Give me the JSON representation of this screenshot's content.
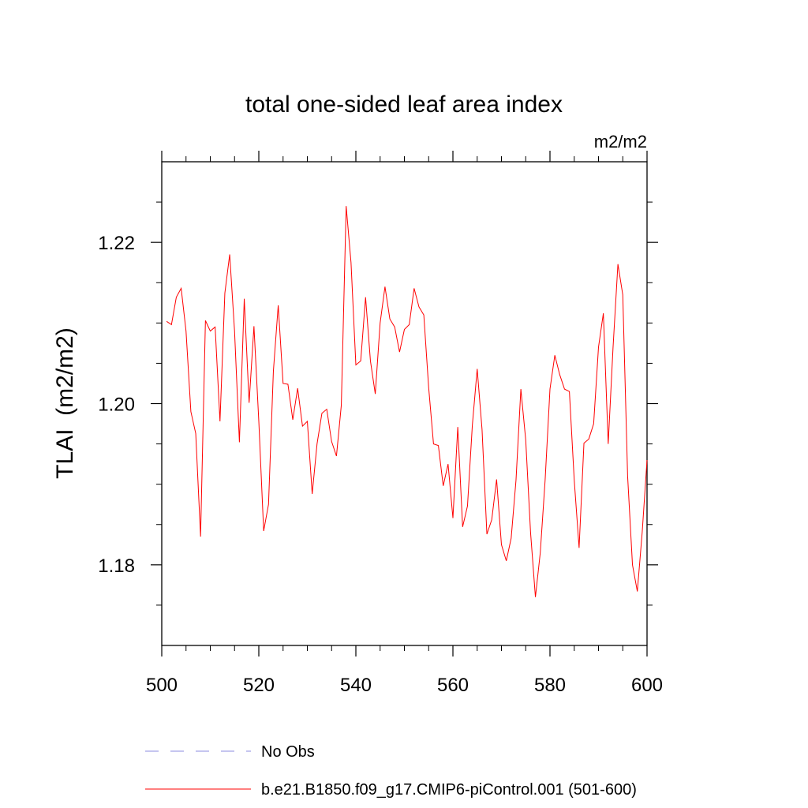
{
  "chart_data": {
    "type": "line",
    "title": "total one-sided leaf area index",
    "units_label": "m2/m2",
    "ylabel": "TLAI  (m2/m2)",
    "xlabel": "",
    "xlim": [
      500,
      600
    ],
    "ylim": [
      1.17,
      1.23
    ],
    "x_ticks": [
      500,
      520,
      540,
      560,
      580,
      600
    ],
    "x_tick_labels": [
      "500",
      "520",
      "540",
      "560",
      "580",
      "600"
    ],
    "y_ticks": [
      1.18,
      1.2,
      1.22
    ],
    "y_tick_labels": [
      "1.18",
      "1.20",
      "1.22"
    ],
    "grid": false,
    "legend_position": "bottom-left",
    "series": [
      {
        "name": "No Obs",
        "style": "dashed",
        "color": "#8e8ee0",
        "x": [],
        "values": []
      },
      {
        "name": "b.e21.B1850.f09_g17.CMIP6-piControl.001 (501-600)",
        "style": "solid",
        "color": "#ff0000",
        "x": [
          501,
          502,
          503,
          504,
          505,
          506,
          507,
          508,
          509,
          510,
          511,
          512,
          513,
          514,
          515,
          516,
          517,
          518,
          519,
          520,
          521,
          522,
          523,
          524,
          525,
          526,
          527,
          528,
          529,
          530,
          531,
          532,
          533,
          534,
          535,
          536,
          537,
          538,
          539,
          540,
          541,
          542,
          543,
          544,
          545,
          546,
          547,
          548,
          549,
          550,
          551,
          552,
          553,
          554,
          555,
          556,
          557,
          558,
          559,
          560,
          561,
          562,
          563,
          564,
          565,
          566,
          567,
          568,
          569,
          570,
          571,
          572,
          573,
          574,
          575,
          576,
          577,
          578,
          579,
          580,
          581,
          582,
          583,
          584,
          585,
          586,
          587,
          588,
          589,
          590,
          591,
          592,
          593,
          594,
          595,
          596,
          597,
          598,
          599,
          600
        ],
        "values": [
          1.2102,
          1.2098,
          1.2132,
          1.2143,
          1.209,
          1.199,
          1.1963,
          1.1835,
          1.2103,
          1.209,
          1.2095,
          1.1978,
          1.2137,
          1.2185,
          1.209,
          1.1952,
          1.213,
          1.2001,
          1.2096,
          1.1978,
          1.1842,
          1.1875,
          1.204,
          1.2122,
          1.2025,
          1.2024,
          1.198,
          1.2019,
          1.1972,
          1.1978,
          1.1888,
          1.195,
          1.1988,
          1.1993,
          1.1953,
          1.1935,
          1.1998,
          1.2245,
          1.2175,
          1.2048,
          1.2053,
          1.2132,
          1.2053,
          1.2012,
          1.21,
          1.2145,
          1.2105,
          1.2095,
          1.2064,
          1.2092,
          1.2098,
          1.2143,
          1.212,
          1.211,
          1.202,
          1.195,
          1.1948,
          1.1898,
          1.1925,
          1.1858,
          1.1971,
          1.1847,
          1.1873,
          1.1973,
          1.2043,
          1.1968,
          1.1838,
          1.1856,
          1.1906,
          1.1825,
          1.1805,
          1.1833,
          1.1905,
          1.2018,
          1.1955,
          1.184,
          1.176,
          1.1815,
          1.1905,
          1.2018,
          1.206,
          1.2036,
          1.2018,
          1.2015,
          1.1905,
          1.1821,
          1.1951,
          1.1956,
          1.1975,
          1.207,
          1.2112,
          1.195,
          1.207,
          1.2173,
          1.2135,
          1.191,
          1.18,
          1.1767,
          1.184,
          1.193
        ]
      }
    ]
  }
}
